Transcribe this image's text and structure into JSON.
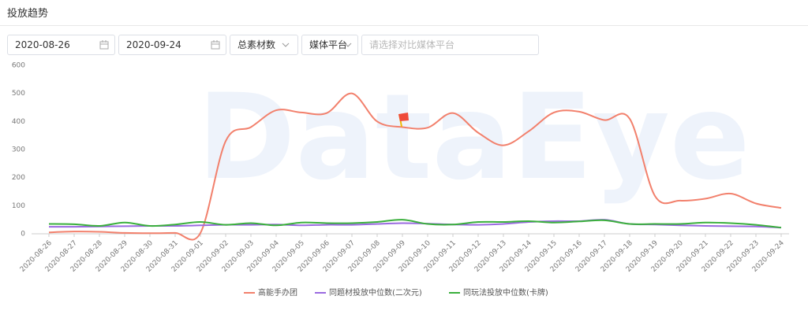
{
  "header": {
    "title": "投放趋势"
  },
  "filters": {
    "start_date": "2020-08-26",
    "end_date": "2020-09-24",
    "metric": "总素材数",
    "platform": "媒体平台",
    "compare_placeholder": "请选择对比媒体平台"
  },
  "chart_data": {
    "type": "line",
    "watermark": "DataEye",
    "categories": [
      "2020-08-26",
      "2020-08-27",
      "2020-08-28",
      "2020-08-29",
      "2020-08-30",
      "2020-08-31",
      "2020-09-01",
      "2020-09-02",
      "2020-09-03",
      "2020-09-04",
      "2020-09-05",
      "2020-09-06",
      "2020-09-07",
      "2020-09-08",
      "2020-09-09",
      "2020-09-10",
      "2020-09-11",
      "2020-09-12",
      "2020-09-13",
      "2020-09-14",
      "2020-09-15",
      "2020-09-16",
      "2020-09-17",
      "2020-09-18",
      "2020-09-19",
      "2020-09-20",
      "2020-09-21",
      "2020-09-22",
      "2020-09-23",
      "2020-09-24"
    ],
    "series": [
      {
        "name": "高能手办团",
        "color": "#f2806c",
        "values": [
          5,
          8,
          7,
          3,
          2,
          3,
          3,
          330,
          380,
          440,
          432,
          430,
          500,
          400,
          380,
          378,
          430,
          360,
          315,
          365,
          432,
          435,
          405,
          410,
          135,
          118,
          125,
          143,
          108,
          92
        ]
      },
      {
        "name": "同题材投放中位数(二次元)",
        "color": "#9a6ae0",
        "values": [
          25,
          25,
          26,
          27,
          28,
          28,
          30,
          32,
          32,
          33,
          30,
          32,
          32,
          35,
          38,
          36,
          33,
          32,
          35,
          42,
          45,
          45,
          50,
          35,
          33,
          30,
          28,
          27,
          26,
          22
        ]
      },
      {
        "name": "同玩法投放中位数(卡牌)",
        "color": "#3aaf3c",
        "values": [
          35,
          34,
          28,
          40,
          28,
          33,
          42,
          32,
          38,
          30,
          40,
          38,
          38,
          42,
          50,
          35,
          33,
          42,
          42,
          45,
          40,
          44,
          48,
          35,
          35,
          35,
          40,
          38,
          32,
          22
        ]
      }
    ],
    "ylim": [
      0,
      600
    ],
    "yticks": [
      0,
      100,
      200,
      300,
      400,
      500,
      600
    ],
    "grid": false,
    "legend": "bottom"
  }
}
